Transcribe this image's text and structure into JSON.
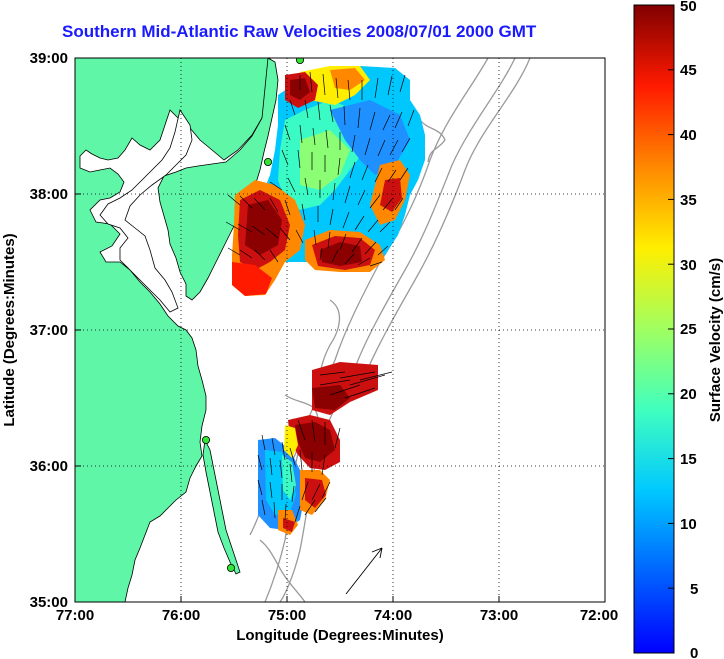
{
  "title": "Southern Mid-Atlantic Raw Velocities 2008/07/01 2000 GMT",
  "x_axis": {
    "label": "Longitude (Degrees:Minutes)",
    "ticks": [
      "77:00",
      "76:00",
      "75:00",
      "74:00",
      "73:00",
      "72:00"
    ]
  },
  "y_axis": {
    "label": "Latitude (Degrees:Minutes)",
    "ticks": [
      "39:00",
      "38:00",
      "37:00",
      "36:00",
      "35:00"
    ]
  },
  "colorbar": {
    "label": "Surface Velocity (cm/s)",
    "ticks": [
      "50",
      "45",
      "40",
      "35",
      "30",
      "25",
      "20",
      "15",
      "10",
      "5",
      "0"
    ],
    "min": 0,
    "max": 50,
    "colormap": "jet"
  },
  "colors": {
    "title": "#1a1aff",
    "land": "#5ff7a7",
    "station_marker": "#33e633",
    "bathymetry": "#999999",
    "grid": "#000000"
  },
  "map_extent": {
    "lon_west": -77,
    "lon_east": -72,
    "lat_south": 35,
    "lat_north": 39
  }
}
